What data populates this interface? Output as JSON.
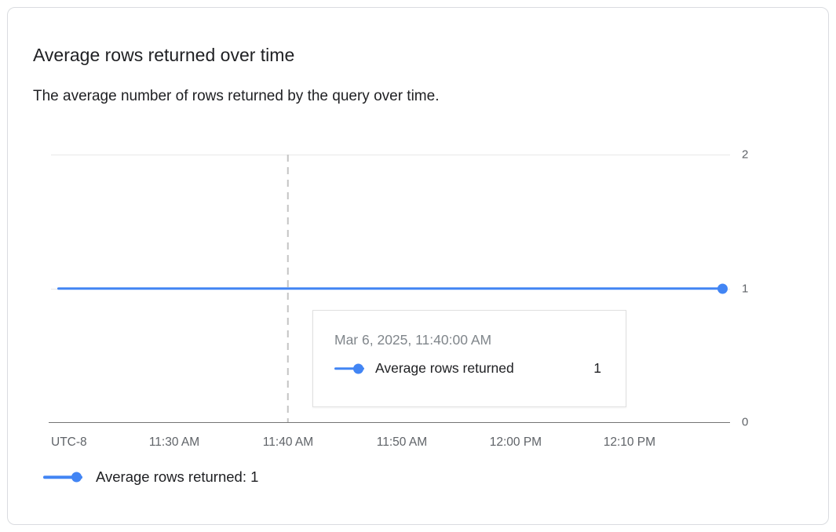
{
  "card": {
    "title": "Average rows returned over time",
    "subtitle": "The average number of rows returned by the query over time."
  },
  "chart_data": {
    "type": "line",
    "title": "Average rows returned over time",
    "x_tick_labels": [
      "UTC-8",
      "11:30 AM",
      "11:40 AM",
      "11:50 AM",
      "12:00 PM",
      "12:10 PM"
    ],
    "y_ticks": [
      2,
      1,
      0
    ],
    "ylim": [
      0,
      2
    ],
    "series": [
      {
        "name": "Average rows returned",
        "color": "#4285f4",
        "values": [
          1,
          1,
          1,
          1,
          1,
          1,
          1
        ]
      }
    ],
    "grid": true,
    "legend_position": "bottom",
    "hover_tick_index": 2,
    "hover_point": {
      "x": "Mar 6, 2025, 11:40:00 AM",
      "y": 1
    }
  },
  "tooltip": {
    "timestamp": "Mar 6, 2025, 11:40:00 AM",
    "series_label": "Average rows returned",
    "value": "1"
  },
  "legend": {
    "label": "Average rows returned: 1"
  },
  "colors": {
    "series_blue": "#4285f4",
    "axis_text": "#5f6368",
    "grid": "#e8e8e8",
    "axis_line": "#757575",
    "hover_line": "#c4c4c4",
    "title_text": "#202124",
    "tooltip_timestamp": "#80868b",
    "card_border": "#dadce0"
  }
}
